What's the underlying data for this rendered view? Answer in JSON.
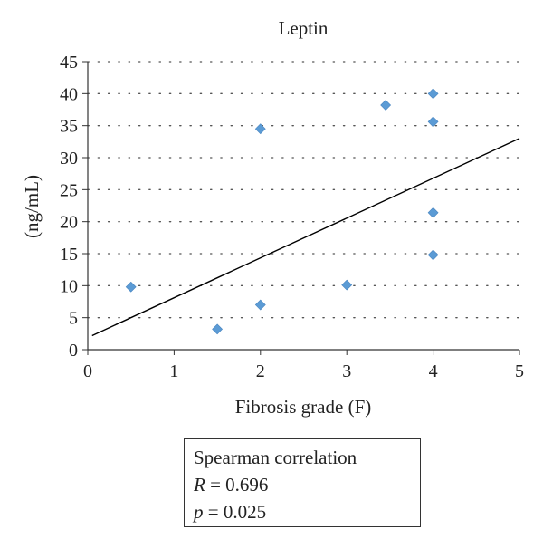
{
  "chart_data": {
    "type": "scatter",
    "title": "Leptin",
    "xlabel": "Fibrosis grade (F)",
    "ylabel": "(ng/mL)",
    "xlim": [
      0,
      5
    ],
    "ylim": [
      0,
      45
    ],
    "x_ticks": [
      "0",
      "1",
      "2",
      "3",
      "4",
      "5"
    ],
    "y_ticks": [
      "0",
      "5",
      "10",
      "15",
      "20",
      "25",
      "30",
      "35",
      "40",
      "45"
    ],
    "grid": "dotted horizontal",
    "marker": "diamond",
    "marker_color": "#5b9bd5",
    "line_color": "#000000",
    "points": [
      {
        "x": 0.5,
        "y": 9.8
      },
      {
        "x": 1.5,
        "y": 3.2
      },
      {
        "x": 2.0,
        "y": 7.0
      },
      {
        "x": 2.0,
        "y": 34.5
      },
      {
        "x": 3.0,
        "y": 10.1
      },
      {
        "x": 3.45,
        "y": 38.2
      },
      {
        "x": 4.0,
        "y": 40.0
      },
      {
        "x": 4.0,
        "y": 35.6
      },
      {
        "x": 4.0,
        "y": 21.4
      },
      {
        "x": 4.0,
        "y": 14.8
      }
    ],
    "trendline": {
      "x": [
        0.05,
        5.0
      ],
      "y": [
        2.2,
        33.0
      ]
    }
  },
  "stats": {
    "heading": "Spearman correlation",
    "r_symbol": "R",
    "r_value": "= 0.696",
    "p_symbol": "p",
    "p_value": "= 0.025"
  }
}
